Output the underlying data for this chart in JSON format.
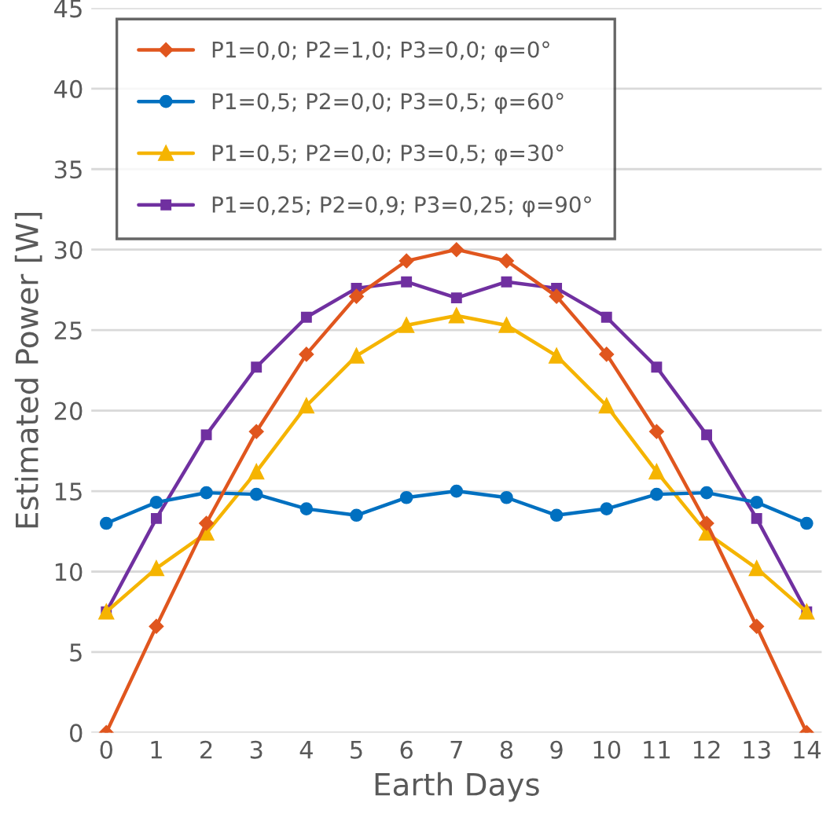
{
  "chart_data": {
    "type": "line",
    "xlabel": "Earth Days",
    "ylabel": "Estimated Power [W]",
    "x": [
      0,
      1,
      2,
      3,
      4,
      5,
      6,
      7,
      8,
      9,
      10,
      11,
      12,
      13,
      14
    ],
    "xlim": [
      -0.3,
      14.3
    ],
    "xticks": [
      0,
      1,
      2,
      3,
      4,
      5,
      6,
      7,
      8,
      9,
      10,
      11,
      12,
      13,
      14
    ],
    "ylim": [
      0,
      45
    ],
    "yticks": [
      0,
      5,
      10,
      15,
      20,
      25,
      30,
      35,
      40,
      45
    ],
    "grid": "y",
    "legend": "top left",
    "series": [
      {
        "name": "P1=0,0; P2=1,0; P3=0,0; φ=0°",
        "color": "#e0561e",
        "marker": "diamond",
        "values": [
          0,
          6.6,
          13,
          18.7,
          23.5,
          27.1,
          29.3,
          30,
          29.3,
          27.1,
          23.5,
          18.7,
          13,
          6.6,
          0
        ]
      },
      {
        "name": "P1=0,5; P2=0,0; P3=0,5; φ=60°",
        "color": "#0070c0",
        "marker": "circle",
        "values": [
          13,
          14.3,
          14.9,
          14.8,
          13.9,
          13.5,
          14.6,
          15,
          14.6,
          13.5,
          13.9,
          14.8,
          14.9,
          14.3,
          13
        ]
      },
      {
        "name": "P1=0,5; P2=0,0; P3=0,5; φ=30°",
        "color": "#f5b400",
        "marker": "triangle",
        "values": [
          7.5,
          10.2,
          12.4,
          16.2,
          20.3,
          23.4,
          25.3,
          25.9,
          25.3,
          23.4,
          20.3,
          16.2,
          12.4,
          10.2,
          7.5
        ]
      },
      {
        "name": "P1=0,25; P2=0,9; P3=0,25; φ=90°",
        "color": "#7030a0",
        "marker": "square",
        "values": [
          7.5,
          13.3,
          18.5,
          22.7,
          25.8,
          27.6,
          28,
          27,
          28,
          27.6,
          25.8,
          22.7,
          18.5,
          13.3,
          7.5
        ]
      }
    ]
  }
}
